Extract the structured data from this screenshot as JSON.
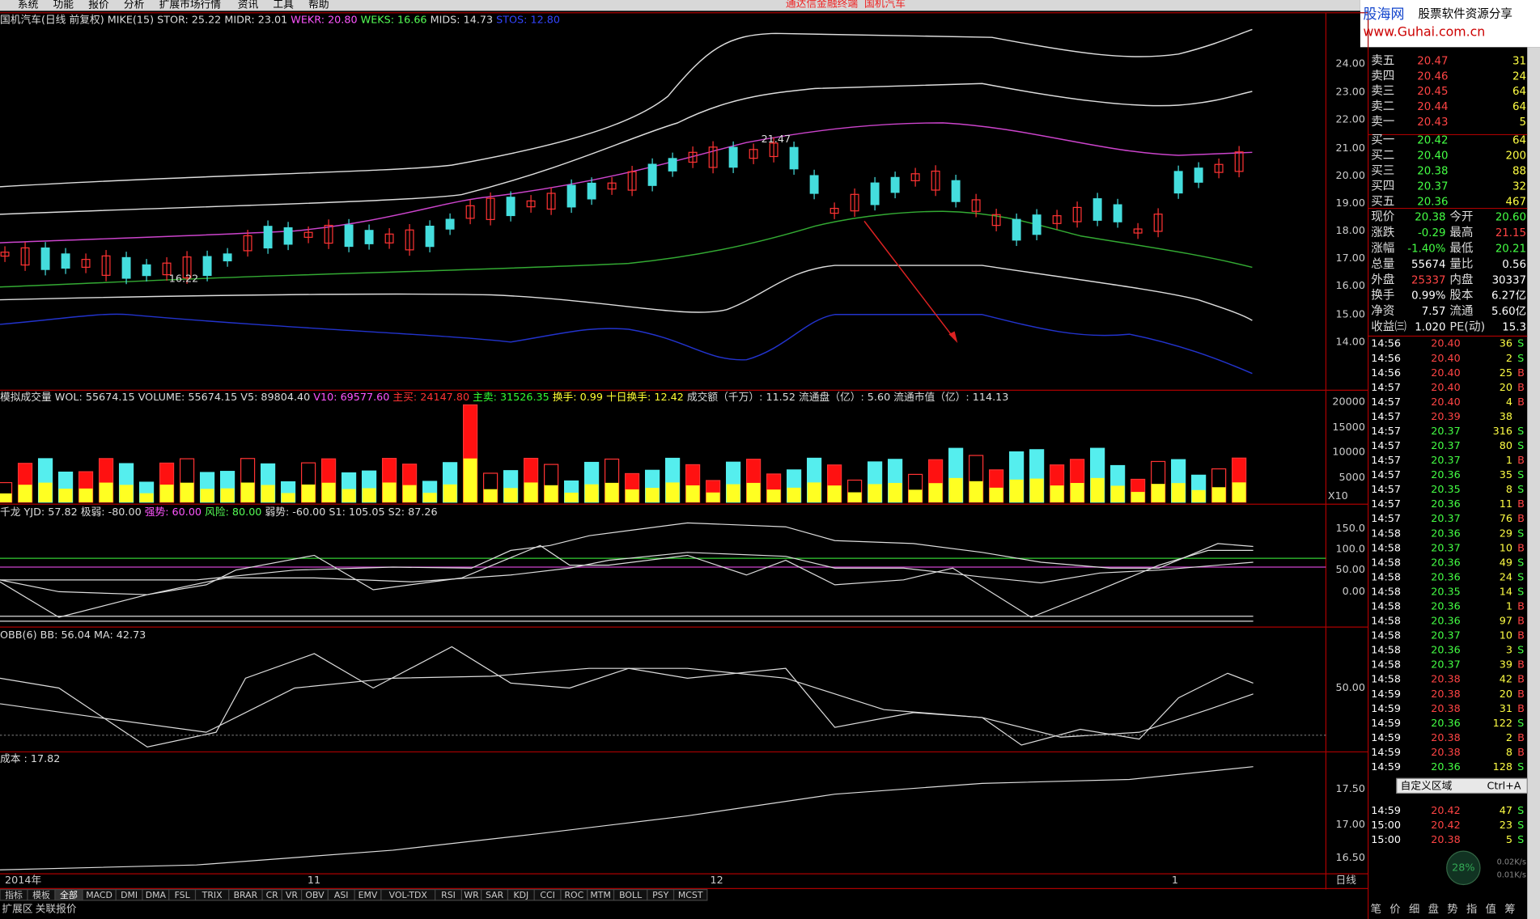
{
  "menu": [
    "系统",
    "功能",
    "报价",
    "分析",
    "扩展市场行情",
    "资讯",
    "工具",
    "帮助"
  ],
  "title_bar": {
    "app": "通达信金融终端",
    "stock": "国机汽车"
  },
  "logo": {
    "brand": "股海网",
    "slogan": "股票软件资源分享",
    "url": "www.Guhai.com.cn"
  },
  "price_panel": {
    "header": [
      {
        "text": "国机汽车(日线 前复权) MIKE(15) STOR: 25.22 MIDR: 23.01 ",
        "color": "#dddddd"
      },
      {
        "text": "WEKR: 20.80 ",
        "color": "#ff55ff"
      },
      {
        "text": "WEKS: 16.66 ",
        "color": "#55ff55"
      },
      {
        "text": "MIDS: 14.73 ",
        "color": "#dddddd"
      },
      {
        "text": "STOS: 12.80",
        "color": "#3344ff"
      }
    ],
    "axis": [
      "24.00",
      "23.00",
      "22.00",
      "21.00",
      "20.00",
      "19.00",
      "18.00",
      "17.00",
      "16.00",
      "15.00",
      "14.00"
    ],
    "high_label": "21.47",
    "low_label": "16.22"
  },
  "volume_panel": {
    "header": [
      {
        "text": "模拟成交量 WOL: 55674.15  VOLUME: 55674.15  V5: 89804.40 ",
        "color": "#dddddd"
      },
      {
        "text": "V10: 69577.60 ",
        "color": "#ff55ff"
      },
      {
        "text": "主买: 24147.80 ",
        "color": "#ff3333"
      },
      {
        "text": "主卖: 31526.35    ",
        "color": "#33ff33"
      },
      {
        "text": "换手: 0.99  十日换手: 12.42 ",
        "color": "#ffff33"
      },
      {
        "text": "成交额（千万）: 11.52  流通盘（亿）: 5.60  流通市值（亿）: 114.13",
        "color": "#dddddd"
      }
    ],
    "axis": [
      "20000",
      "15000",
      "10000",
      "5000"
    ],
    "unit": "X10"
  },
  "yjd_panel": {
    "header": [
      {
        "text": "千龙 YJD: 57.82  极弱: -80.00  ",
        "color": "#dddddd"
      },
      {
        "text": "强势: 60.00  ",
        "color": "#ff55ff"
      },
      {
        "text": "风险: 80.00  ",
        "color": "#55ff55"
      },
      {
        "text": "弱势: -60.00  S1: 105.05  S2: 87.26",
        "color": "#dddddd"
      }
    ],
    "axis": [
      "150.0",
      "100.0",
      "50.00",
      "0.00"
    ]
  },
  "obb_panel": {
    "header": [
      {
        "text": "OBB(6) BB: 56.04  MA: 42.73",
        "color": "#dddddd"
      }
    ],
    "axis": [
      "50.00"
    ]
  },
  "cost_panel": {
    "header": [
      {
        "text": "成本 : 17.82",
        "color": "#dddddd"
      }
    ],
    "axis": [
      "17.50",
      "17.00",
      "16.50"
    ]
  },
  "date_axis": [
    "2014年",
    "11",
    "12",
    "1"
  ],
  "period": "日线",
  "tabs": [
    "指标",
    "模板",
    "全部",
    "MACD",
    "DMI",
    "DMA",
    "FSL",
    "TRIX",
    "BRAR",
    "CR",
    "VR",
    "OBV",
    "ASI",
    "EMV",
    "VOL-TDX",
    "RSI",
    "WR",
    "SAR",
    "KDJ",
    "CCI",
    "ROC",
    "MTM",
    "BOLL",
    "PSY",
    "MCST"
  ],
  "bottom_tabs": [
    "扩展区",
    "关联报价"
  ],
  "order_book": {
    "asks": [
      [
        "卖五",
        "20.47",
        "31"
      ],
      [
        "卖四",
        "20.46",
        "24"
      ],
      [
        "卖三",
        "20.45",
        "64"
      ],
      [
        "卖二",
        "20.44",
        "64"
      ],
      [
        "卖一",
        "20.43",
        "5"
      ]
    ],
    "bids": [
      [
        "买一",
        "20.42",
        "64"
      ],
      [
        "买二",
        "20.40",
        "200"
      ],
      [
        "买三",
        "20.38",
        "88"
      ],
      [
        "买四",
        "20.37",
        "32"
      ],
      [
        "买五",
        "20.36",
        "467"
      ]
    ]
  },
  "stats": [
    [
      "现价",
      "20.38",
      "今开",
      "20.60"
    ],
    [
      "涨跌",
      "-0.29",
      "最高",
      "21.15"
    ],
    [
      "涨幅",
      "-1.40%",
      "最低",
      "20.21"
    ],
    [
      "总量",
      "55674",
      "量比",
      "0.56"
    ],
    [
      "外盘",
      "25337",
      "内盘",
      "30337"
    ],
    [
      "换手",
      "0.99%",
      "股本",
      "6.27亿"
    ],
    [
      "净资",
      "7.57",
      "流通",
      "5.60亿"
    ],
    [
      "收益㈢",
      "1.020",
      "PE(动)",
      "15.3"
    ]
  ],
  "ticks": [
    [
      "14:56",
      "20.40",
      "36",
      "S"
    ],
    [
      "14:56",
      "20.40",
      "2",
      "S"
    ],
    [
      "14:56",
      "20.40",
      "25",
      "B"
    ],
    [
      "14:57",
      "20.40",
      "20",
      "B"
    ],
    [
      "14:57",
      "20.40",
      "4",
      "B"
    ],
    [
      "14:57",
      "20.39",
      "38",
      ""
    ],
    [
      "14:57",
      "20.37",
      "316",
      "S"
    ],
    [
      "14:57",
      "20.37",
      "80",
      "S"
    ],
    [
      "14:57",
      "20.37",
      "1",
      "B"
    ],
    [
      "14:57",
      "20.36",
      "35",
      "S"
    ],
    [
      "14:57",
      "20.35",
      "8",
      "S"
    ],
    [
      "14:57",
      "20.36",
      "11",
      "B"
    ],
    [
      "14:57",
      "20.37",
      "76",
      "B"
    ],
    [
      "14:58",
      "20.36",
      "29",
      "S"
    ],
    [
      "14:58",
      "20.37",
      "10",
      "B"
    ],
    [
      "14:58",
      "20.36",
      "49",
      "S"
    ],
    [
      "14:58",
      "20.36",
      "24",
      "S"
    ],
    [
      "14:58",
      "20.35",
      "14",
      "S"
    ],
    [
      "14:58",
      "20.36",
      "1",
      "B"
    ],
    [
      "14:58",
      "20.36",
      "97",
      "B"
    ],
    [
      "14:58",
      "20.37",
      "10",
      "B"
    ],
    [
      "14:58",
      "20.36",
      "3",
      "S"
    ],
    [
      "14:58",
      "20.37",
      "39",
      "B"
    ],
    [
      "14:58",
      "20.38",
      "42",
      "B"
    ],
    [
      "14:59",
      "20.38",
      "20",
      "B"
    ],
    [
      "14:59",
      "20.38",
      "31",
      "B"
    ],
    [
      "14:59",
      "20.36",
      "122",
      "S"
    ],
    [
      "14:59",
      "20.38",
      "2",
      "B"
    ],
    [
      "14:59",
      "20.38",
      "8",
      "B"
    ],
    [
      "14:59",
      "20.36",
      "128",
      "S"
    ],
    [
      "14:59",
      "20.42",
      "47",
      "S"
    ],
    [
      "15:00",
      "20.42",
      "23",
      "S"
    ],
    [
      "15:00",
      "20.38",
      "5",
      "S"
    ]
  ],
  "popup": {
    "label": "自定义区域",
    "shortcut": "Ctrl+A"
  },
  "speed": {
    "percent": "28%",
    "up": "0.02K/s",
    "down": "0.01K/s"
  },
  "side_tabs": [
    "笔",
    "价",
    "细",
    "盘",
    "势",
    "指",
    "值",
    "筹"
  ]
}
